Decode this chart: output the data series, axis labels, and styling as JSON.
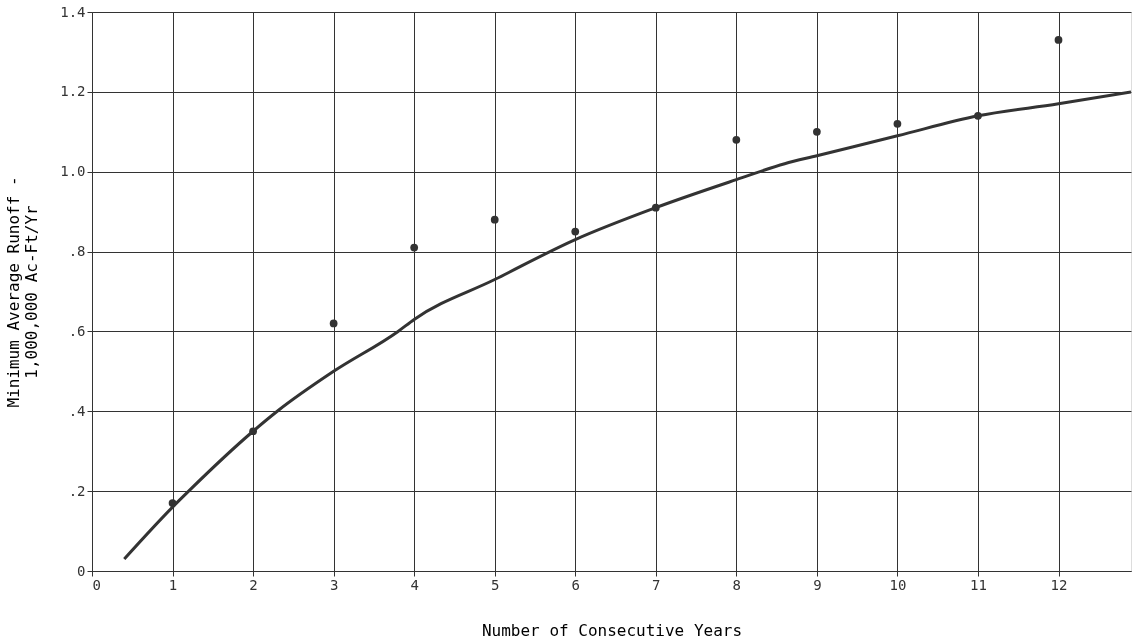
{
  "chart_data": {
    "type": "scatter",
    "xlabel": "Number of Consecutive Years",
    "ylabel": "Minimum Average Runoff -\n1,000,000 Ac-Ft/Yr",
    "xlim": [
      0,
      12.9
    ],
    "xticks": [
      0,
      1,
      2,
      3,
      4,
      5,
      6,
      7,
      8,
      9,
      10,
      11,
      12
    ],
    "ylim": [
      0,
      1.4
    ],
    "yticks": [
      0,
      {
        "value": 0.2,
        "label": ".2"
      },
      {
        "value": 0.4,
        "label": ".4"
      },
      {
        "value": 0.6,
        "label": ".6"
      },
      {
        "value": 0.8,
        "label": ".8"
      },
      {
        "value": 1.0,
        "label": "1.0"
      },
      {
        "value": 1.2,
        "label": "1.2"
      },
      {
        "value": 1.4,
        "label": "1.4"
      }
    ],
    "grid": true,
    "series": [
      {
        "color": "#333333",
        "marker": "circle",
        "x": [
          1,
          2,
          3,
          4,
          5,
          6,
          7,
          8,
          9,
          10,
          11,
          12
        ],
        "values": [
          0.17,
          0.35,
          0.62,
          0.81,
          0.88,
          0.85,
          0.91,
          1.08,
          1.1,
          1.12,
          1.14,
          1.33
        ]
      },
      {
        "type": "line",
        "color": "#333333",
        "marker": "none",
        "line_style": "solid",
        "x": [
          0.4,
          1,
          1.2,
          2,
          2.3,
          3,
          3.8,
          4,
          5,
          6,
          7,
          8,
          8.6,
          9,
          10,
          11,
          12,
          12.9
        ],
        "values": [
          0.03,
          0.16,
          0.2,
          0.35,
          0.4,
          0.5,
          0.6,
          0.63,
          0.73,
          0.83,
          0.91,
          0.98,
          1.02,
          1.04,
          1.09,
          1.14,
          1.17,
          1.2
        ]
      }
    ]
  }
}
